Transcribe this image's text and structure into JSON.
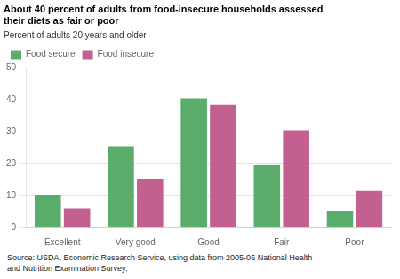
{
  "chart_data": {
    "type": "bar",
    "title": [
      "About 40 percent of adults from food-insecure households assessed",
      "their diets as fair or poor"
    ],
    "subtitle": "Percent of adults 20 years and older",
    "source": "Source: USDA, Economic Research Service, using data from 2005-06 National Health\nand Nutrition Examination Survey.",
    "categories": [
      "Excellent",
      "Very good",
      "Good",
      "Fair",
      "Poor"
    ],
    "series": [
      {
        "name": "Food secure",
        "color": "#5aad6b",
        "values": [
          10,
          25.5,
          40.5,
          19.5,
          5
        ]
      },
      {
        "name": "Food insecure",
        "color": "#c46090",
        "values": [
          6,
          15,
          38.5,
          30.5,
          11.5
        ]
      }
    ],
    "ylim": [
      0,
      50
    ],
    "yticks": [
      0,
      10,
      20,
      30,
      40,
      50
    ],
    "grid": true,
    "legend": "top left"
  }
}
